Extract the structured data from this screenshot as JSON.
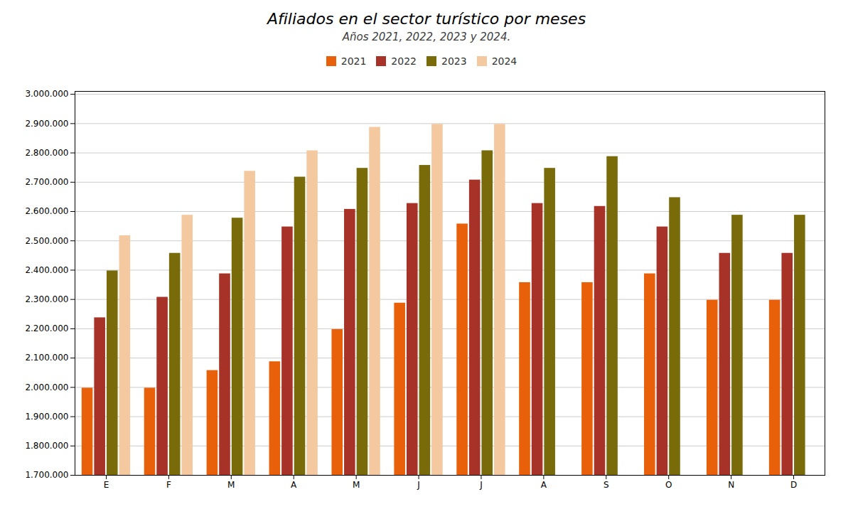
{
  "chart_data": {
    "type": "bar",
    "title": "Afiliados en el sector turístico por meses",
    "subtitle": "Años 2021, 2022, 2023 y 2024.",
    "categories": [
      "E",
      "F",
      "M",
      "A",
      "M",
      "J",
      "J",
      "A",
      "S",
      "O",
      "N",
      "D"
    ],
    "series": [
      {
        "name": "2021",
        "color": "#E8600A",
        "values": [
          2000000,
          2000000,
          2060000,
          2090000,
          2200000,
          2290000,
          2560000,
          2360000,
          2360000,
          2390000,
          2300000,
          2300000
        ]
      },
      {
        "name": "2022",
        "color": "#A63228",
        "values": [
          2240000,
          2310000,
          2390000,
          2550000,
          2610000,
          2630000,
          2710000,
          2630000,
          2620000,
          2550000,
          2460000,
          2460000
        ]
      },
      {
        "name": "2023",
        "color": "#7A6B0A",
        "values": [
          2400000,
          2460000,
          2580000,
          2720000,
          2750000,
          2760000,
          2810000,
          2750000,
          2790000,
          2650000,
          2590000,
          2590000
        ]
      },
      {
        "name": "2024",
        "color": "#F5C9A0",
        "values": [
          2520000,
          2590000,
          2740000,
          2810000,
          2890000,
          2900000,
          2900000,
          null,
          null,
          null,
          null,
          null
        ]
      }
    ],
    "ylim": [
      1700000,
      3010000
    ],
    "yticks": [
      {
        "value": 1700000,
        "label": "1.700.000"
      },
      {
        "value": 1800000,
        "label": "1.800.000"
      },
      {
        "value": 1900000,
        "label": "1.900.000"
      },
      {
        "value": 2000000,
        "label": "2.000.000"
      },
      {
        "value": 2100000,
        "label": "2.100.000"
      },
      {
        "value": 2200000,
        "label": "2.200.000"
      },
      {
        "value": 2300000,
        "label": "2.300.000"
      },
      {
        "value": 2400000,
        "label": "2.400.000"
      },
      {
        "value": 2500000,
        "label": "2.500.000"
      },
      {
        "value": 2600000,
        "label": "2.600.000"
      },
      {
        "value": 2700000,
        "label": "2.700.000"
      },
      {
        "value": 2800000,
        "label": "2.800.000"
      },
      {
        "value": 2900000,
        "label": "2.900.000"
      },
      {
        "value": 3000000,
        "label": "3.000.000"
      }
    ],
    "grid": true,
    "legend": "top"
  }
}
